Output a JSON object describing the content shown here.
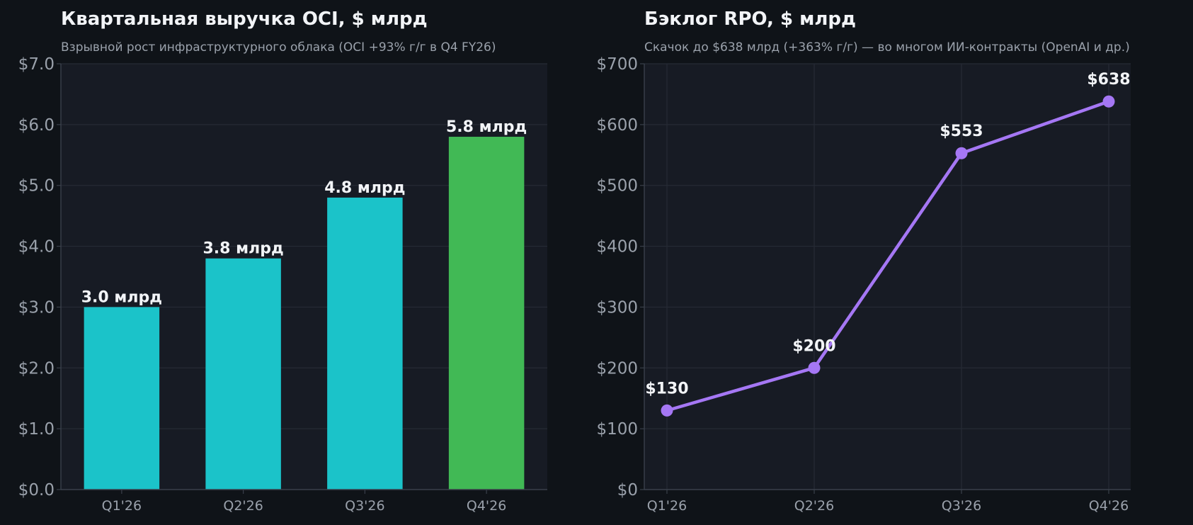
{
  "chart_data": [
    {
      "type": "bar",
      "title": "Квартальная выручка OCI, $ млрд",
      "subtitle": "Взрывной рост инфраструктурного облака (OCI +93% г/г в Q4 FY26)",
      "categories": [
        "Q1'26",
        "Q2'26",
        "Q3'26",
        "Q4'26"
      ],
      "values": [
        3.0,
        3.8,
        4.8,
        5.8
      ],
      "data_labels": [
        "3.0 млрд",
        "3.8 млрд",
        "4.8 млрд",
        "5.8 млрд"
      ],
      "bar_colors": [
        "#1bc3c9",
        "#1bc3c9",
        "#1bc3c9",
        "#41b955"
      ],
      "ylim": [
        0,
        7
      ],
      "y_ticks": [
        0,
        1,
        2,
        3,
        4,
        5,
        6,
        7
      ],
      "y_tick_labels": [
        "$0.0",
        "$1.0",
        "$2.0",
        "$3.0",
        "$4.0",
        "$5.0",
        "$6.0",
        "$7.0"
      ],
      "grid": true
    },
    {
      "type": "line",
      "title": "Бэклог RPO, $ млрд",
      "subtitle": "Скачок до $638 млрд (+363% г/г) — во многом ИИ-контракты (OpenAI и др.)",
      "categories": [
        "Q1'26",
        "Q2'26",
        "Q3'26",
        "Q4'26"
      ],
      "values": [
        130,
        200,
        553,
        638
      ],
      "data_labels": [
        "$130",
        "$200",
        "$553",
        "$638"
      ],
      "line_color": "#a577f4",
      "ylim": [
        0,
        700
      ],
      "y_ticks": [
        0,
        100,
        200,
        300,
        400,
        500,
        600,
        700
      ],
      "y_tick_labels": [
        "$0",
        "$100",
        "$200",
        "$300",
        "$400",
        "$500",
        "$600",
        "$700"
      ],
      "grid": true
    }
  ],
  "colors": {
    "page_background": "#0f1318",
    "plot_background": "#171b24",
    "grid": "#262b35",
    "spine": "#3a404b",
    "text_primary": "#f2f4f7",
    "text_secondary": "#9aa1ab"
  }
}
